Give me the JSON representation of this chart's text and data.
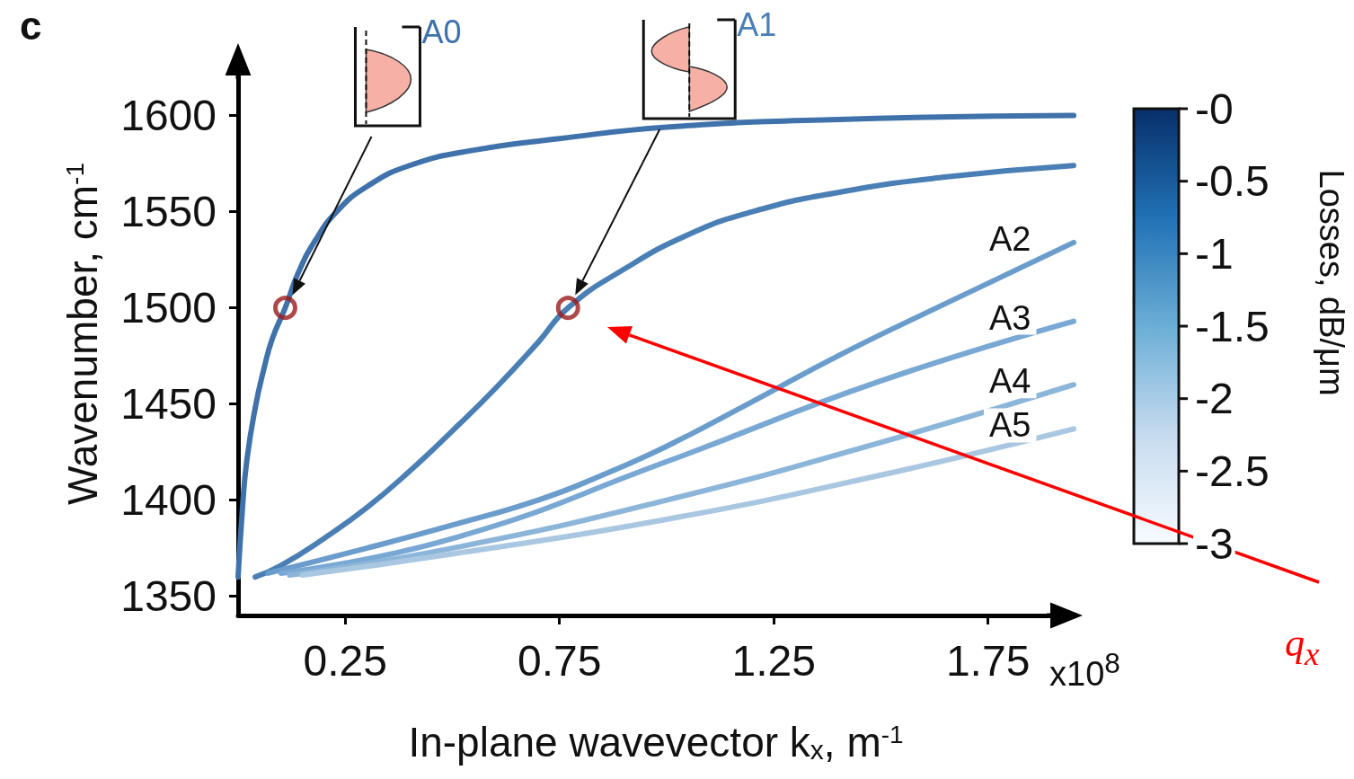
{
  "chart_data": {
    "type": "line",
    "xlabel": "In-plane wavevector k$_{x}$, m$^{-1}$",
    "ylabel": "Wavenumber, cm$^{-1}$",
    "clabel": "Losses, dB/μm",
    "annotations": [
      "c",
      "x10$^{8}$",
      "q$_{x}$"
    ],
    "xlim": [
      0,
      1.95
    ],
    "xticks": [
      0.25,
      0.75,
      1.25,
      1.75
    ],
    "ylim": [
      1340,
      1633
    ],
    "yticks": [
      1350,
      1400,
      1450,
      1500,
      1550,
      1600
    ],
    "clim": [
      -3,
      0
    ],
    "cticks": [
      {
        "value": 0,
        "label": "-0"
      },
      -0.5,
      -1,
      -1.5,
      -2,
      -2.5,
      -3
    ],
    "grid": false,
    "legend": false,
    "marker": "none",
    "line_style": "solid",
    "series": [
      {
        "name": "A0",
        "x": [
          0,
          0.01,
          0.02,
          0.04,
          0.06,
          0.08,
          0.11,
          0.14,
          0.18,
          0.23,
          0.3,
          0.4,
          0.55,
          0.75,
          1.0,
          1.4,
          1.95
        ],
        "values": [
          1360,
          1395,
          1420,
          1448,
          1468,
          1484,
          1500,
          1518,
          1535,
          1550,
          1563,
          1574,
          1582,
          1588,
          1594,
          1598,
          1600
        ],
        "color": "#3f72ab"
      },
      {
        "name": "A1",
        "x": [
          0.04,
          0.1,
          0.2,
          0.3,
          0.4,
          0.5,
          0.6,
          0.7,
          0.77,
          0.9,
          1.05,
          1.2,
          1.4,
          1.65,
          1.95
        ],
        "values": [
          1360,
          1366,
          1380,
          1396,
          1415,
          1436,
          1458,
          1482,
          1500,
          1520,
          1538,
          1550,
          1560,
          1568,
          1574
        ],
        "color": "#4a7fb5"
      },
      {
        "name": "A2",
        "x": [
          0.07,
          0.3,
          0.5,
          0.7,
          0.85,
          1.0,
          1.19,
          1.4,
          1.63,
          1.95
        ],
        "values": [
          1362,
          1375,
          1387,
          1400,
          1413,
          1428,
          1450,
          1475,
          1500,
          1534
        ],
        "color": "#6a9ccc"
      },
      {
        "name": "A3",
        "x": [
          0.1,
          0.5,
          1.0,
          1.5,
          1.95
        ],
        "values": [
          1362,
          1380,
          1420,
          1462,
          1493
        ],
        "color": "#78a8d3"
      },
      {
        "name": "A4",
        "x": [
          0.12,
          0.5,
          1.0,
          1.5,
          1.95
        ],
        "values": [
          1361,
          1375,
          1400,
          1430,
          1460
        ],
        "color": "#8cb5da"
      },
      {
        "name": "A5",
        "x": [
          0.15,
          0.5,
          1.0,
          1.5,
          1.95
        ],
        "values": [
          1361,
          1372,
          1390,
          1413,
          1437
        ],
        "color": "#aac7e1"
      },
      {
        "type": "scatter",
        "x": [
          0.11,
          0.77
        ],
        "values": [
          1500,
          1500
        ],
        "color": "#9b1b1b",
        "marker": "circle"
      }
    ]
  }
}
